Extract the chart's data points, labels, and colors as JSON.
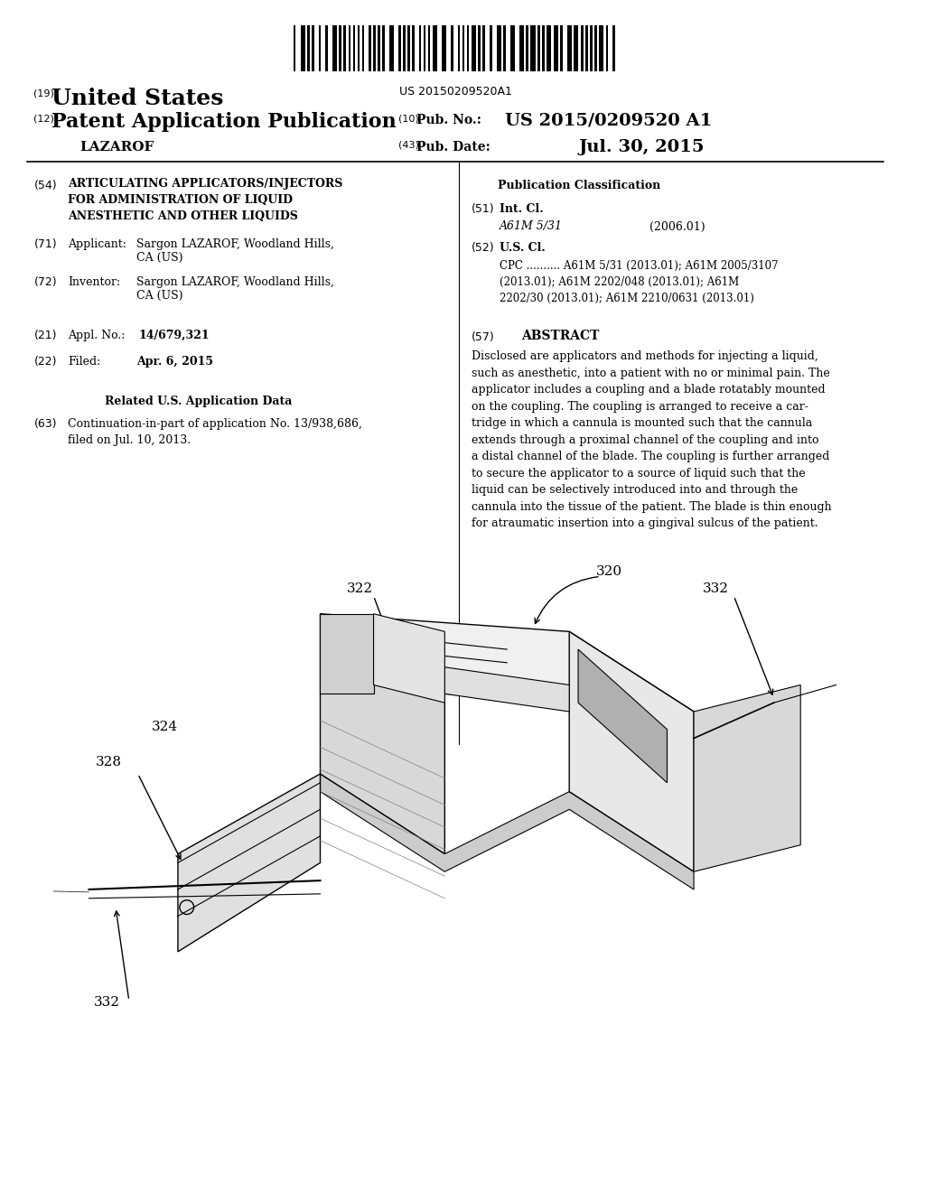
{
  "background_color": "#ffffff",
  "barcode_text": "US 20150209520A1",
  "doc_number_19": "(19)",
  "doc_title_19": "United States",
  "doc_number_12": "(12)",
  "doc_title_12": "Patent Application Publication",
  "doc_number_10": "(10)",
  "doc_pubno_label": "Pub. No.:",
  "doc_pubno_value": "US 2015/0209520 A1",
  "doc_number_43": "(43)",
  "doc_pubdate_label": "Pub. Date:",
  "doc_pubdate_value": "Jul. 30, 2015",
  "doc_inventor": "LAZAROF",
  "section_54_num": "(54)",
  "section_54_title": "ARTICULATING APPLICATORS/INJECTORS\nFOR ADMINISTRATION OF LIQUID\nANESTHETIC AND OTHER LIQUIDS",
  "section_71_num": "(71)",
  "section_71_label": "Applicant:",
  "section_71_text": "Sargon LAZAROF, Woodland Hills,\nCA (US)",
  "section_72_num": "(72)",
  "section_72_label": "Inventor:",
  "section_72_text": "Sargon LAZAROF, Woodland Hills,\nCA (US)",
  "section_21_num": "(21)",
  "section_21_label": "Appl. No.:",
  "section_21_value": "14/679,321",
  "section_22_num": "(22)",
  "section_22_label": "Filed:",
  "section_22_value": "Apr. 6, 2015",
  "related_data_title": "Related U.S. Application Data",
  "section_63_num": "(63)",
  "section_63_text": "Continuation-in-part of application No. 13/938,686,\nfiled on Jul. 10, 2013.",
  "pub_class_title": "Publication Classification",
  "section_51_num": "(51)",
  "section_51_label": "Int. Cl.",
  "section_51_class": "A61M 5/31",
  "section_51_year": "(2006.01)",
  "section_52_num": "(52)",
  "section_52_label": "U.S. Cl.",
  "section_52_cpc": "CPC .......... A61M 5/31 (2013.01); A61M 2005/3107\n(2013.01); A61M 2202/048 (2013.01); A61M\n2202/30 (2013.01); A61M 2210/0631 (2013.01)",
  "section_57_num": "(57)",
  "section_57_label": "ABSTRACT",
  "section_57_text": "Disclosed are applicators and methods for injecting a liquid,\nsuch as anesthetic, into a patient with no or minimal pain. The\napplicator includes a coupling and a blade rotatably mounted\non the coupling. The coupling is arranged to receive a car-\ntridge in which a cannula is mounted such that the cannula\nextends through a proximal channel of the coupling and into\na distal channel of the blade. The coupling is further arranged\nto secure the applicator to a source of liquid such that the\nliquid can be selectively introduced into and through the\ncannula into the tissue of the patient. The blade is thin enough\nfor atraumatic insertion into a gingival sulcus of the patient.",
  "label_320": "320",
  "label_322": "322",
  "label_324": "324",
  "label_328": "328",
  "label_332_top": "332",
  "label_332_bot": "332"
}
